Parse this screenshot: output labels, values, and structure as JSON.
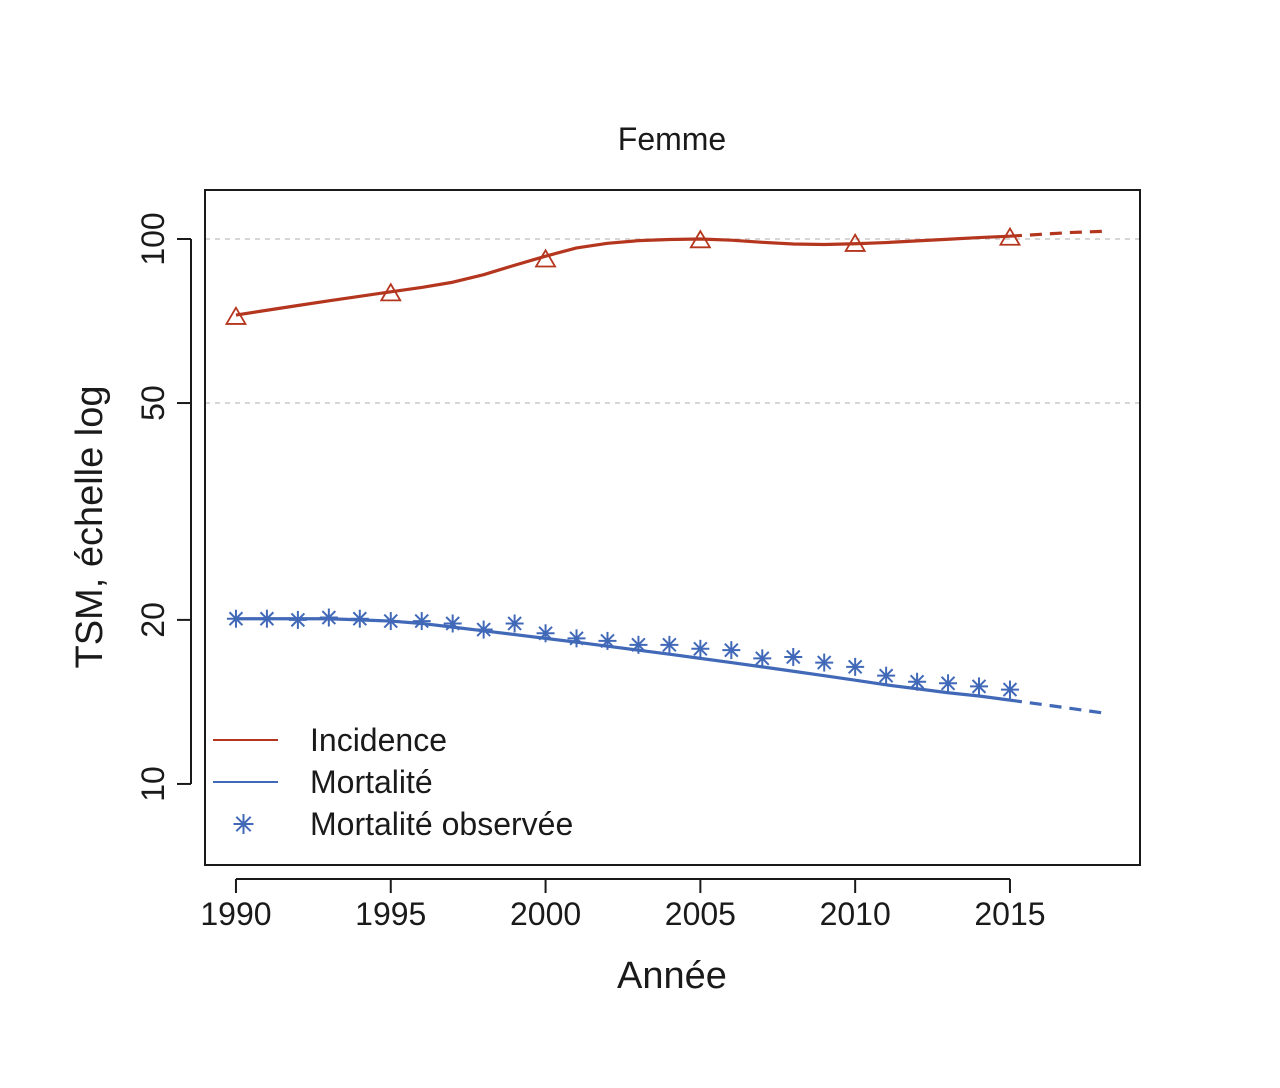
{
  "chart_data": {
    "type": "line",
    "title": "Femme",
    "xlabel": "Année",
    "ylabel": "TSM, échelle log",
    "yscale": "log",
    "xlim": [
      1989,
      2019.2
    ],
    "ylim": [
      7.1,
      123
    ],
    "xticks": [
      1990,
      1995,
      2000,
      2005,
      2010,
      2015
    ],
    "yticks": [
      10,
      20,
      50,
      100
    ],
    "reference_lines_y": [
      50,
      100
    ],
    "legend_position": "bottom-left",
    "series": [
      {
        "name": "Incidence",
        "color": "#b5361e",
        "marker": "triangle",
        "x": [
          1990,
          1991,
          1992,
          1993,
          1994,
          1995,
          1996,
          1997,
          1998,
          1999,
          2000,
          2001,
          2002,
          2003,
          2004,
          2005,
          2006,
          2007,
          2008,
          2009,
          2010,
          2011,
          2012,
          2013,
          2014,
          2015
        ],
        "values": [
          72.5,
          74,
          75.5,
          77,
          78.5,
          80,
          81.5,
          83.3,
          86,
          89.5,
          93,
          96.3,
          98.2,
          99.3,
          99.8,
          100,
          99.5,
          98.6,
          97.9,
          97.7,
          98,
          98.5,
          99.2,
          99.9,
          100.6,
          101.2
        ],
        "marker_x": [
          1990,
          1995,
          2000,
          2005,
          2010,
          2015
        ],
        "marker_values": [
          71.7,
          79.2,
          91.4,
          99.1,
          97.6,
          100.2
        ],
        "projection": {
          "x": [
            2015,
            2016,
            2017,
            2018
          ],
          "values": [
            101.2,
            102,
            102.8,
            103.3
          ]
        }
      },
      {
        "name": "Mortalité",
        "color": "#4169b8",
        "x": [
          1990,
          1991,
          1992,
          1993,
          1994,
          1995,
          1996,
          1997,
          1998,
          1999,
          2000,
          2001,
          2002,
          2003,
          2004,
          2005,
          2006,
          2007,
          2008,
          2009,
          2010,
          2011,
          2012,
          2013,
          2014,
          2015
        ],
        "values": [
          20.1,
          20.1,
          20.1,
          20.1,
          20,
          19.9,
          19.7,
          19.4,
          19.1,
          18.8,
          18.5,
          18.2,
          17.9,
          17.6,
          17.3,
          17,
          16.7,
          16.4,
          16.1,
          15.8,
          15.5,
          15.2,
          14.95,
          14.7,
          14.5,
          14.25
        ],
        "projection": {
          "x": [
            2015,
            2016,
            2017,
            2018
          ],
          "values": [
            14.25,
            14,
            13.75,
            13.5
          ]
        }
      },
      {
        "name": "Mortalité observée",
        "color": "#4169b8",
        "marker": "asterisk",
        "x": [
          1990,
          1991,
          1992,
          1993,
          1994,
          1995,
          1996,
          1997,
          1998,
          1999,
          2000,
          2001,
          2002,
          2003,
          2004,
          2005,
          2006,
          2007,
          2008,
          2009,
          2010,
          2011,
          2012,
          2013,
          2014,
          2015
        ],
        "values": [
          20.1,
          20.1,
          20,
          20.2,
          20.1,
          19.9,
          19.9,
          19.7,
          19.2,
          19.7,
          18.9,
          18.5,
          18.3,
          18,
          18,
          17.7,
          17.6,
          17,
          17.1,
          16.7,
          16.4,
          15.8,
          15.4,
          15.3,
          15.1,
          14.9
        ]
      }
    ]
  }
}
